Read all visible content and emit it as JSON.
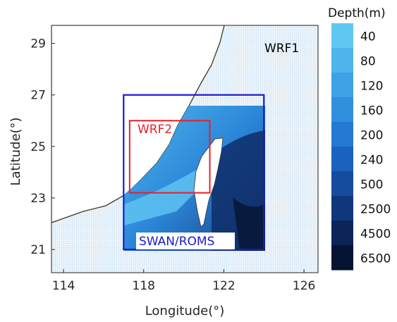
{
  "map": {
    "xlabel": "Longitude(°)",
    "ylabel": "Latitude(°)",
    "x_ticks": [
      "114",
      "118",
      "122",
      "126"
    ],
    "y_ticks": [
      "29",
      "27",
      "25",
      "23",
      "21"
    ],
    "x_range": [
      113.4,
      126.7
    ],
    "y_range": [
      20.1,
      29.7
    ],
    "x_tick_values": [
      114,
      118,
      122,
      126
    ],
    "y_tick_values": [
      29,
      27,
      25,
      23,
      21
    ],
    "domains": [
      {
        "label": "WRF1",
        "color": "#000000",
        "lon": [
          113.4,
          126.7
        ],
        "lat": [
          20.1,
          29.7
        ]
      },
      {
        "label": "WRF2",
        "color": "#e8202a",
        "lon": [
          117.3,
          121.3
        ],
        "lat": [
          23.2,
          26.0
        ]
      },
      {
        "label": "SWAN/ROMS",
        "color": "#1a1acc",
        "lon": [
          117.0,
          124.0
        ],
        "lat": [
          21.0,
          27.0
        ]
      }
    ]
  },
  "colorbar": {
    "title": "Depth(m)",
    "levels": [
      "40",
      "80",
      "120",
      "160",
      "200",
      "240",
      "500",
      "2500",
      "4500",
      "6500"
    ],
    "colors": [
      "#5ec8f2",
      "#4db5ec",
      "#3ea2e6",
      "#318fdd",
      "#2479d2",
      "#1a62bd",
      "#154c9e",
      "#10377c",
      "#0b2559",
      "#061332"
    ]
  }
}
